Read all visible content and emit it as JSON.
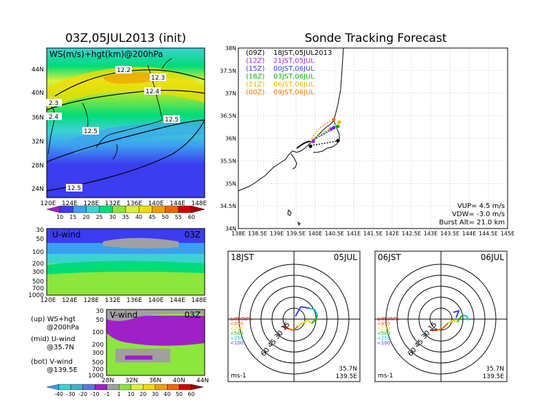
{
  "left_title": "03Z,05JUL2013 (init)",
  "right_title": "Sonde Tracking Forecast",
  "panel_ws": {
    "label": "WS(m/s)+hgt(km)@200hPa",
    "lat_ticks": [
      "44N",
      "40N",
      "36N",
      "32N",
      "28N",
      "24N"
    ],
    "lon_ticks": [
      "120E",
      "124E",
      "128E",
      "132E",
      "136E",
      "140E",
      "144E",
      "148E"
    ],
    "contour_labels": [
      "12.2",
      "12.3",
      "12.4",
      "2.3",
      "2.4",
      "12.5",
      "12.5",
      "12.5"
    ],
    "colorbar_labels": [
      "10",
      "15",
      "20",
      "25",
      "30",
      "35",
      "40",
      "45",
      "50",
      "55",
      "60"
    ],
    "colorbar_colors": [
      "#a020c8",
      "#3c3cf0",
      "#3ca0f0",
      "#3cd2d2",
      "#00dc78",
      "#8ce63c",
      "#dcf03c",
      "#f0dc00",
      "#f0a000",
      "#f06400",
      "#d20000",
      "#a00000"
    ]
  },
  "panel_u": {
    "label": "U-wind",
    "time": "03Z",
    "p_ticks": [
      "30",
      "50",
      "100",
      "200",
      "300",
      "500",
      "700",
      "1000"
    ],
    "lon_ticks": [
      "120E",
      "124E",
      "128E",
      "132E",
      "136E",
      "140E",
      "144E",
      "148E"
    ]
  },
  "panel_v": {
    "label": "V-wind",
    "time": "03Z",
    "p_ticks": [
      "30",
      "50",
      "100",
      "200",
      "300",
      "500",
      "700",
      "1000"
    ],
    "lat_ticks": [
      "28N",
      "32N",
      "36N",
      "40N",
      "44N"
    ]
  },
  "legend_notes": [
    {
      "head": "(up) WS+hgt",
      "sub": "@200hPa"
    },
    {
      "head": "(mid) U-wind",
      "sub": "@35.7N"
    },
    {
      "head": "(bot) V-wind",
      "sub": "@139.5E"
    }
  ],
  "bottom_colorbar": {
    "labels": [
      "-40",
      "-30",
      "-20",
      "-10",
      "-1",
      "1",
      "10",
      "20",
      "30",
      "40",
      "50",
      "60"
    ],
    "colors": [
      "#3ca0f0",
      "#3cd2d2",
      "#3cb4c8",
      "#5a78dc",
      "#a020c8",
      "#a0a0a0",
      "#8ce63c",
      "#dcf03c",
      "#f0dc00",
      "#f0a000",
      "#f06400",
      "#d20000",
      "#a00000"
    ]
  },
  "tracking": {
    "lat_ticks": [
      "38N",
      "37.5N",
      "37N",
      "36.5N",
      "36N",
      "35.5N",
      "35N",
      "34.5N",
      "34N"
    ],
    "lon_ticks": [
      "138E",
      "138.5E",
      "139E",
      "139.5E",
      "140E",
      "140.5E",
      "141E",
      "141.5E",
      "142E",
      "142.5E",
      "143E",
      "143.5E",
      "144E",
      "144.5E",
      "145E"
    ],
    "legend": [
      {
        "code": "(09Z)",
        "time": "18JST,05JUL2013",
        "color": "#000000"
      },
      {
        "code": "(12Z)",
        "time": "21JST,05JUL",
        "color": "#a020f0"
      },
      {
        "code": "(15Z)",
        "time": "00JST,06JUL",
        "color": "#3c3cf0"
      },
      {
        "code": "(18Z)",
        "time": "03JST,06JUL",
        "color": "#00b400"
      },
      {
        "code": "(21Z)",
        "time": "06JST,06JUL",
        "color": "#f0b400"
      },
      {
        "code": "(00Z)",
        "time": "09JST,06JUL",
        "color": "#f07800"
      }
    ],
    "params": [
      "VUP= 4.5 m/s",
      "VDW= -3.0 m/s",
      "Burst Alt= 21.0 km"
    ]
  },
  "hodographs": [
    {
      "time": "18JST",
      "date": "05JUL",
      "rings": [
        "15",
        "30",
        "45",
        "60"
      ],
      "levels": [
        "≥850hPa",
        "<850",
        "<700",
        "<500",
        "<250",
        "<100"
      ],
      "unit": "ms-1",
      "loc1": "35.7N",
      "loc2": "139.5E"
    },
    {
      "time": "06JST",
      "date": "06JUL",
      "rings": [
        "15",
        "30",
        "45",
        "60"
      ],
      "levels": [
        "≥850hPa",
        "<850",
        "<700",
        "<500",
        "<250",
        "<100"
      ],
      "unit": "ms-1",
      "loc1": "35.7N",
      "loc2": "139.5E"
    }
  ],
  "level_colors": [
    "#d20000",
    "#f06400",
    "#f0dc00",
    "#00b400",
    "#00c8c8",
    "#3c3cf0"
  ]
}
